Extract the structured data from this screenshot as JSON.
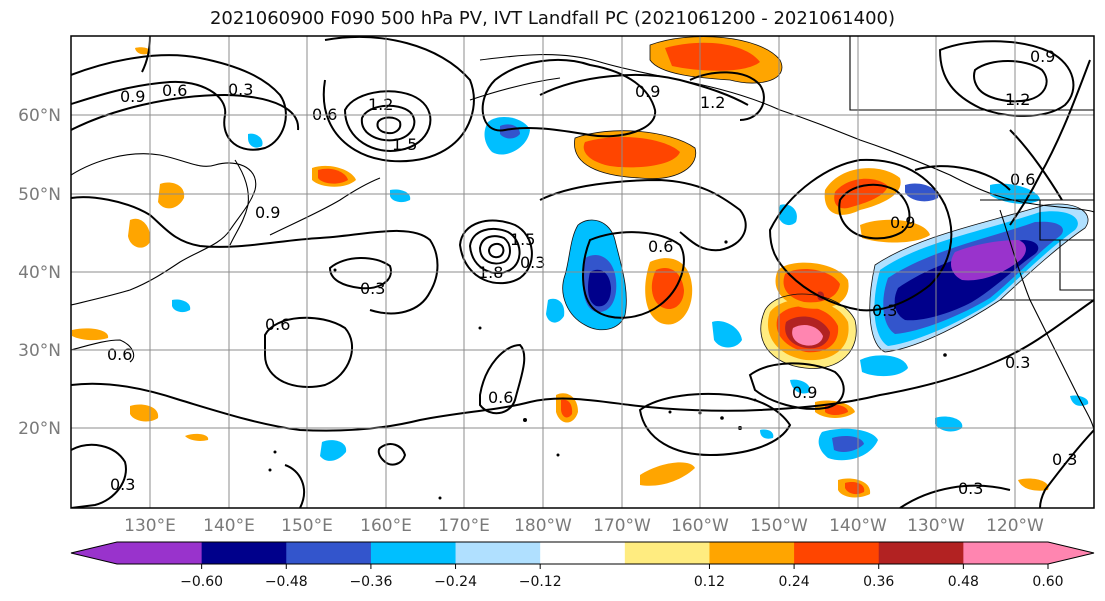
{
  "title": "2021060900 F090 500 hPa PV, IVT Landfall PC (2021061200 - 2021061400)",
  "lat_labels": [
    "60°N",
    "50°N",
    "40°N",
    "30°N",
    "20°N"
  ],
  "lon_labels": [
    "130°E",
    "140°E",
    "150°E",
    "160°E",
    "170°E",
    "180°W",
    "170°W",
    "160°W",
    "150°W",
    "140°W",
    "130°W",
    "120°W"
  ],
  "colorbar": {
    "colors": [
      "#9933cc",
      "#00008b",
      "#3355cc",
      "#00bfff",
      "#b0e0ff",
      "#ffffff",
      "#ffec80",
      "#ffa500",
      "#ff4500",
      "#b22222",
      "#ff85b0"
    ],
    "tick_labels": [
      "−0.60",
      "−0.48",
      "−0.36",
      "−0.24",
      "−0.12",
      "0.12",
      "0.24",
      "0.36",
      "0.48",
      "0.60"
    ]
  },
  "contour_labels": [
    "0.9",
    "0.6",
    "0.3",
    "0.6",
    "1.2",
    "1.5",
    "0.9",
    "1.2",
    "0.9",
    "0.6",
    "0.9",
    "1.2",
    "0.9",
    "0.3",
    "1.5",
    "1.8",
    "0.6",
    "0.3",
    "0.6",
    "0.6",
    "0.9",
    "0.6",
    "0.3",
    "0.3",
    "0.3",
    "0.3",
    "0.3"
  ]
}
